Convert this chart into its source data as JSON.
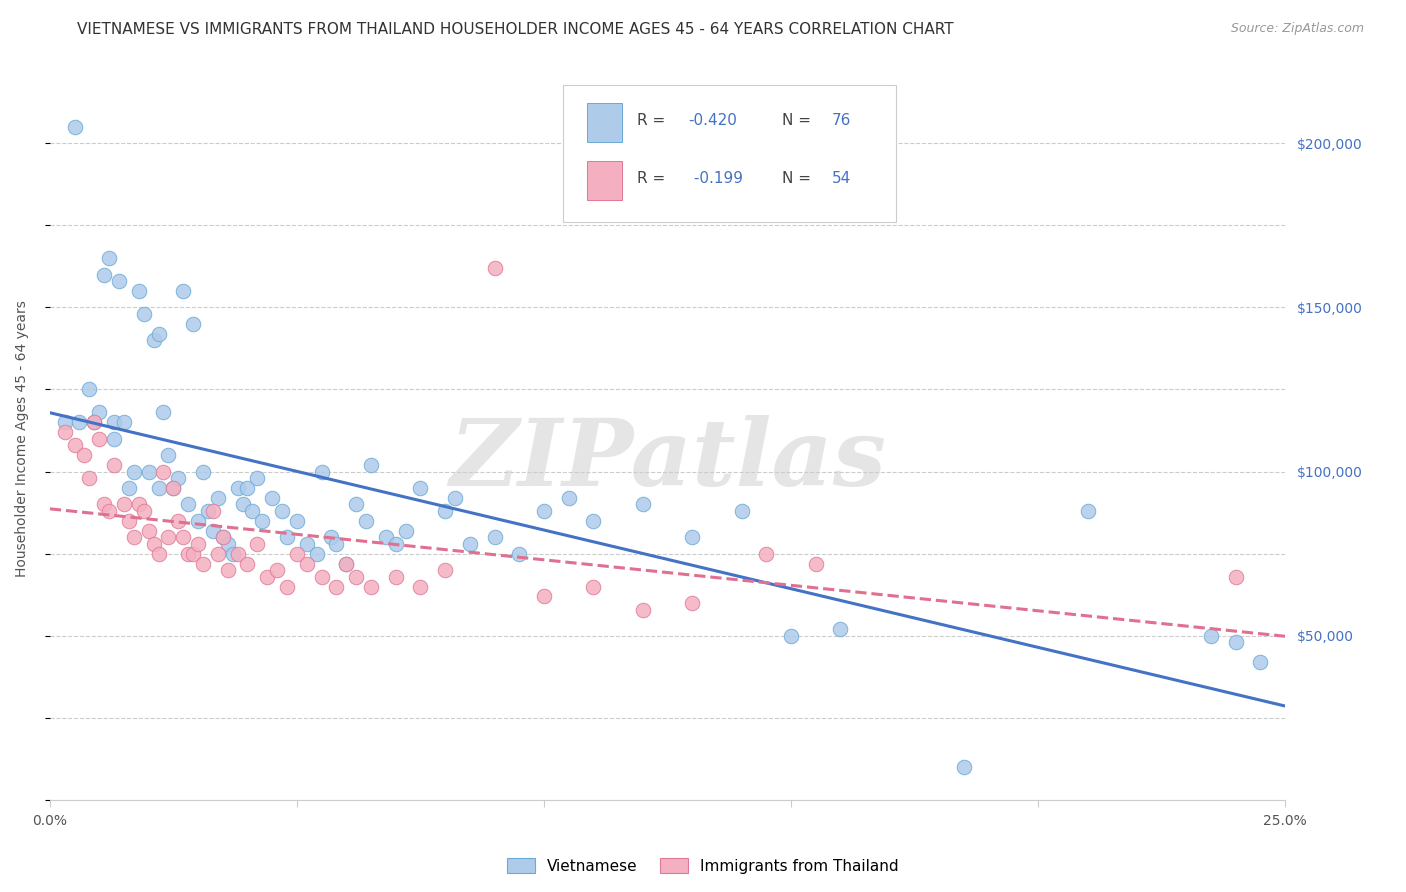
{
  "title": "VIETNAMESE VS IMMIGRANTS FROM THAILAND HOUSEHOLDER INCOME AGES 45 - 64 YEARS CORRELATION CHART",
  "source": "Source: ZipAtlas.com",
  "ylabel": "Householder Income Ages 45 - 64 years",
  "xlim": [
    0.0,
    0.25
  ],
  "ylim": [
    0,
    220000
  ],
  "xticks": [
    0.0,
    0.05,
    0.1,
    0.15,
    0.2,
    0.25
  ],
  "xticklabels": [
    "0.0%",
    "",
    "",
    "",
    "",
    "25.0%"
  ],
  "yticks": [
    0,
    50000,
    100000,
    150000,
    200000
  ],
  "yticklabels_right": [
    "",
    "$50,000",
    "$100,000",
    "$150,000",
    "$200,000"
  ],
  "blue_fill": "#AECBEA",
  "pink_fill": "#F4B0C0",
  "blue_edge": "#6AAAD4",
  "pink_edge": "#E07898",
  "blue_line": "#4472C4",
  "pink_line": "#E07090",
  "watermark_text": "ZIPatlas",
  "background": "#FFFFFF",
  "grid_color": "#CCCCCC",
  "title_fontsize": 11,
  "tick_fontsize": 10,
  "label_fontsize": 10,
  "legend_bottom": [
    "Vietnamese",
    "Immigrants from Thailand"
  ],
  "viet_x": [
    0.003,
    0.005,
    0.006,
    0.008,
    0.009,
    0.01,
    0.011,
    0.012,
    0.013,
    0.013,
    0.014,
    0.015,
    0.016,
    0.017,
    0.018,
    0.019,
    0.02,
    0.021,
    0.022,
    0.022,
    0.023,
    0.024,
    0.025,
    0.026,
    0.027,
    0.028,
    0.029,
    0.03,
    0.031,
    0.032,
    0.033,
    0.034,
    0.035,
    0.036,
    0.037,
    0.038,
    0.039,
    0.04,
    0.041,
    0.042,
    0.043,
    0.045,
    0.047,
    0.048,
    0.05,
    0.052,
    0.054,
    0.055,
    0.057,
    0.058,
    0.06,
    0.062,
    0.064,
    0.065,
    0.068,
    0.07,
    0.072,
    0.075,
    0.08,
    0.082,
    0.085,
    0.09,
    0.095,
    0.1,
    0.105,
    0.11,
    0.12,
    0.13,
    0.14,
    0.15,
    0.16,
    0.185,
    0.21,
    0.235,
    0.24,
    0.245
  ],
  "viet_y": [
    115000,
    205000,
    115000,
    125000,
    115000,
    118000,
    160000,
    165000,
    115000,
    110000,
    158000,
    115000,
    95000,
    100000,
    155000,
    148000,
    100000,
    140000,
    142000,
    95000,
    118000,
    105000,
    95000,
    98000,
    155000,
    90000,
    145000,
    85000,
    100000,
    88000,
    82000,
    92000,
    80000,
    78000,
    75000,
    95000,
    90000,
    95000,
    88000,
    98000,
    85000,
    92000,
    88000,
    80000,
    85000,
    78000,
    75000,
    100000,
    80000,
    78000,
    72000,
    90000,
    85000,
    102000,
    80000,
    78000,
    82000,
    95000,
    88000,
    92000,
    78000,
    80000,
    75000,
    88000,
    92000,
    85000,
    90000,
    80000,
    88000,
    50000,
    52000,
    10000,
    88000,
    50000,
    48000,
    42000
  ],
  "thai_x": [
    0.003,
    0.005,
    0.007,
    0.008,
    0.009,
    0.01,
    0.011,
    0.012,
    0.013,
    0.015,
    0.016,
    0.017,
    0.018,
    0.019,
    0.02,
    0.021,
    0.022,
    0.023,
    0.024,
    0.025,
    0.026,
    0.027,
    0.028,
    0.029,
    0.03,
    0.031,
    0.033,
    0.034,
    0.035,
    0.036,
    0.038,
    0.04,
    0.042,
    0.044,
    0.046,
    0.048,
    0.05,
    0.052,
    0.055,
    0.058,
    0.06,
    0.062,
    0.065,
    0.07,
    0.075,
    0.08,
    0.09,
    0.1,
    0.11,
    0.12,
    0.13,
    0.145,
    0.155,
    0.24
  ],
  "thai_y": [
    112000,
    108000,
    105000,
    98000,
    115000,
    110000,
    90000,
    88000,
    102000,
    90000,
    85000,
    80000,
    90000,
    88000,
    82000,
    78000,
    75000,
    100000,
    80000,
    95000,
    85000,
    80000,
    75000,
    75000,
    78000,
    72000,
    88000,
    75000,
    80000,
    70000,
    75000,
    72000,
    78000,
    68000,
    70000,
    65000,
    75000,
    72000,
    68000,
    65000,
    72000,
    68000,
    65000,
    68000,
    65000,
    70000,
    162000,
    62000,
    65000,
    58000,
    60000,
    75000,
    72000,
    68000
  ]
}
